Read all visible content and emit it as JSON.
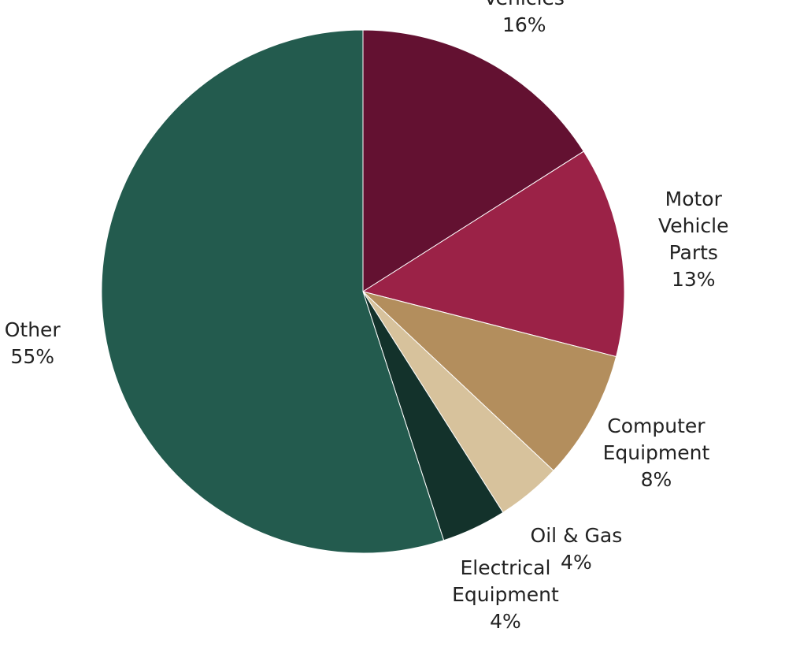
{
  "chart_data": {
    "type": "pie",
    "categories": [
      "Motor\nVehicles",
      "Motor\nVehicle Parts",
      "Computer\nEquipment",
      "Oil & Gas",
      "Electrical\nEquipment",
      "Other"
    ],
    "values": [
      16,
      13,
      8,
      4,
      4,
      55
    ],
    "value_labels": [
      "16%",
      "13%",
      "8%",
      "4%",
      "4%",
      "55%"
    ],
    "colors": [
      "#631131",
      "#9b2247",
      "#b38e5d",
      "#d7c29c",
      "#13322b",
      "#235b4e"
    ]
  }
}
